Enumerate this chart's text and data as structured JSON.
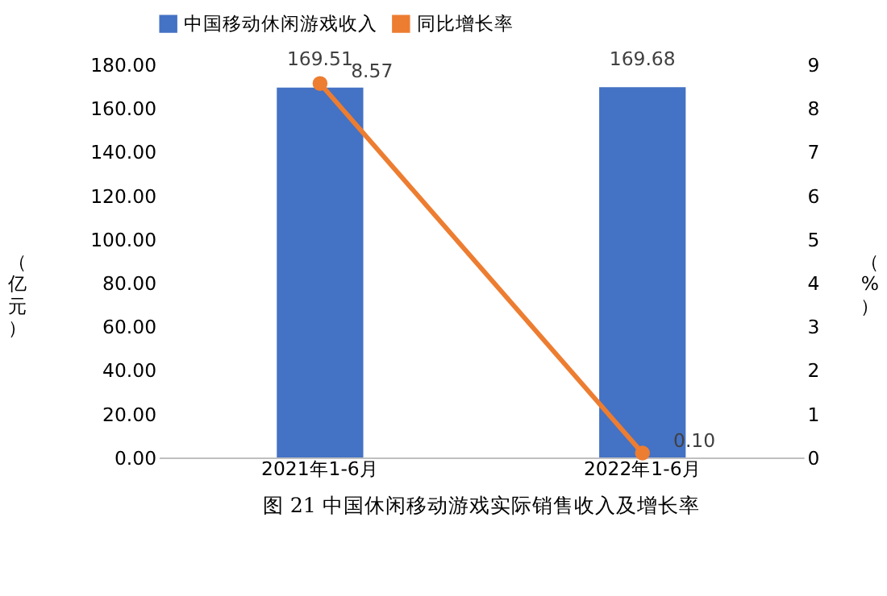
{
  "chart_data": {
    "type": "bar",
    "title": "图 21 中国休闲移动游戏实际销售收入及增长率",
    "ylabel": "（亿元）",
    "y2label": "（%）",
    "categories": [
      "2021年1-6月",
      "2022年1-6月"
    ],
    "series": [
      {
        "name": "中国移动休闲游戏收入",
        "color": "#4472c4",
        "values": [
          169.51,
          169.68
        ]
      },
      {
        "name": "同比增长率",
        "type": "line",
        "axis": "y2",
        "color": "#ed7d31",
        "values": [
          8.57,
          0.1
        ],
        "value_labels": [
          "8.57",
          "0.10"
        ]
      }
    ],
    "ylim": [
      0,
      180
    ],
    "yticks": [
      {
        "value": 0,
        "label": "0.00"
      },
      {
        "value": 20,
        "label": "20.00"
      },
      {
        "value": 40,
        "label": "40.00"
      },
      {
        "value": 60,
        "label": "60.00"
      },
      {
        "value": 80,
        "label": "80.00"
      },
      {
        "value": 100,
        "label": "100.00"
      },
      {
        "value": 120,
        "label": "120.00"
      },
      {
        "value": 140,
        "label": "140.00"
      },
      {
        "value": 160,
        "label": "160.00"
      },
      {
        "value": 180,
        "label": "180.00"
      }
    ],
    "y2lim": [
      0,
      9
    ],
    "y2ticks": [
      0,
      1,
      2,
      3,
      4,
      5,
      6,
      7,
      8,
      9
    ],
    "data_labels": true,
    "legend": "top",
    "marker": "circle",
    "grid": false
  }
}
